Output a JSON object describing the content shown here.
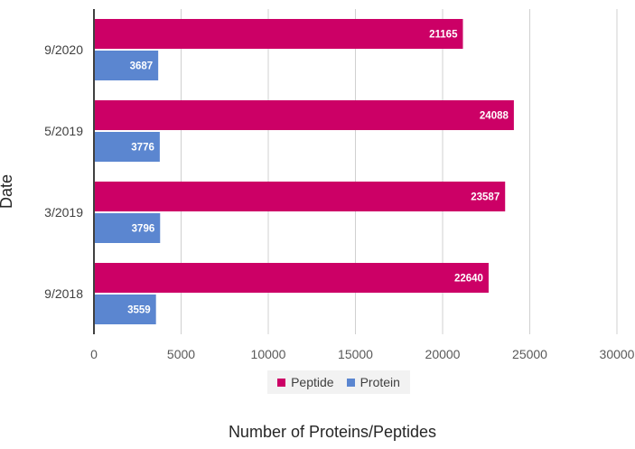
{
  "chart_data": {
    "type": "bar",
    "orientation": "horizontal",
    "categories": [
      "9/2020",
      "5/2019",
      "3/2019",
      "9/2018"
    ],
    "series": [
      {
        "name": "Peptide",
        "color": "#cc0066",
        "values": [
          21165,
          24088,
          23587,
          22640
        ]
      },
      {
        "name": "Protein",
        "color": "#5b86d0",
        "values": [
          3687,
          3776,
          3796,
          3559
        ]
      }
    ],
    "xlabel": "Number of Proteins/Peptides",
    "ylabel": "Date",
    "xlim": [
      0,
      30000
    ],
    "xticks": [
      0,
      5000,
      10000,
      15000,
      20000,
      25000,
      30000
    ],
    "grid": "vertical",
    "legend_position": "bottom",
    "data_labels": true
  }
}
